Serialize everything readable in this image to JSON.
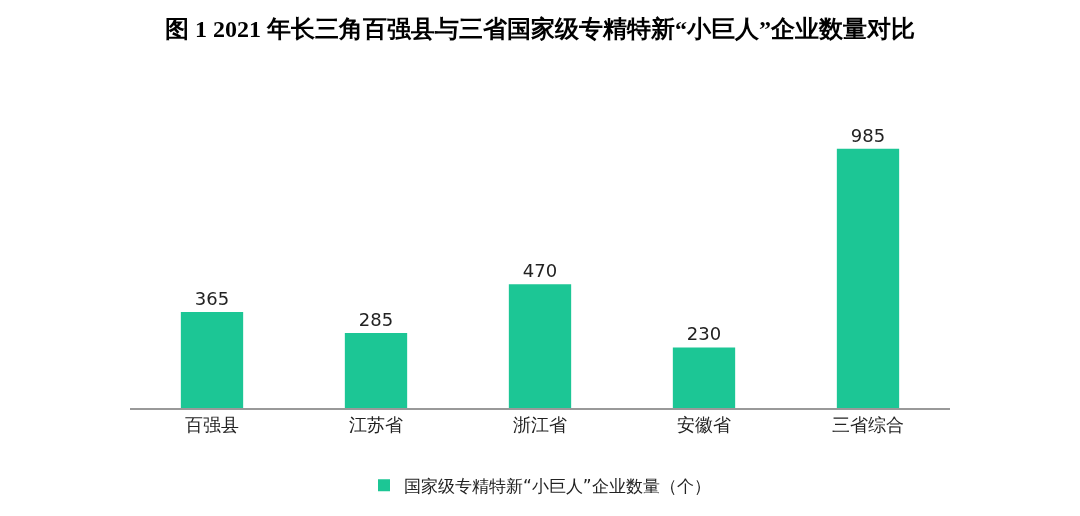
{
  "chart_data": {
    "type": "bar",
    "title": "图 1 2021 年长三角百强县与三省国家级专精特新“小巨人”企业数量对比",
    "categories": [
      "百强县",
      "江苏省",
      "浙江省",
      "安徽省",
      "三省综合"
    ],
    "series": [
      {
        "name": "国家级专精特新“小巨人”企业数量（个）",
        "color": "#1cc695",
        "values": [
          365,
          285,
          470,
          230,
          985
        ]
      }
    ],
    "data_labels": true,
    "grid": false,
    "legend": "bottom"
  }
}
